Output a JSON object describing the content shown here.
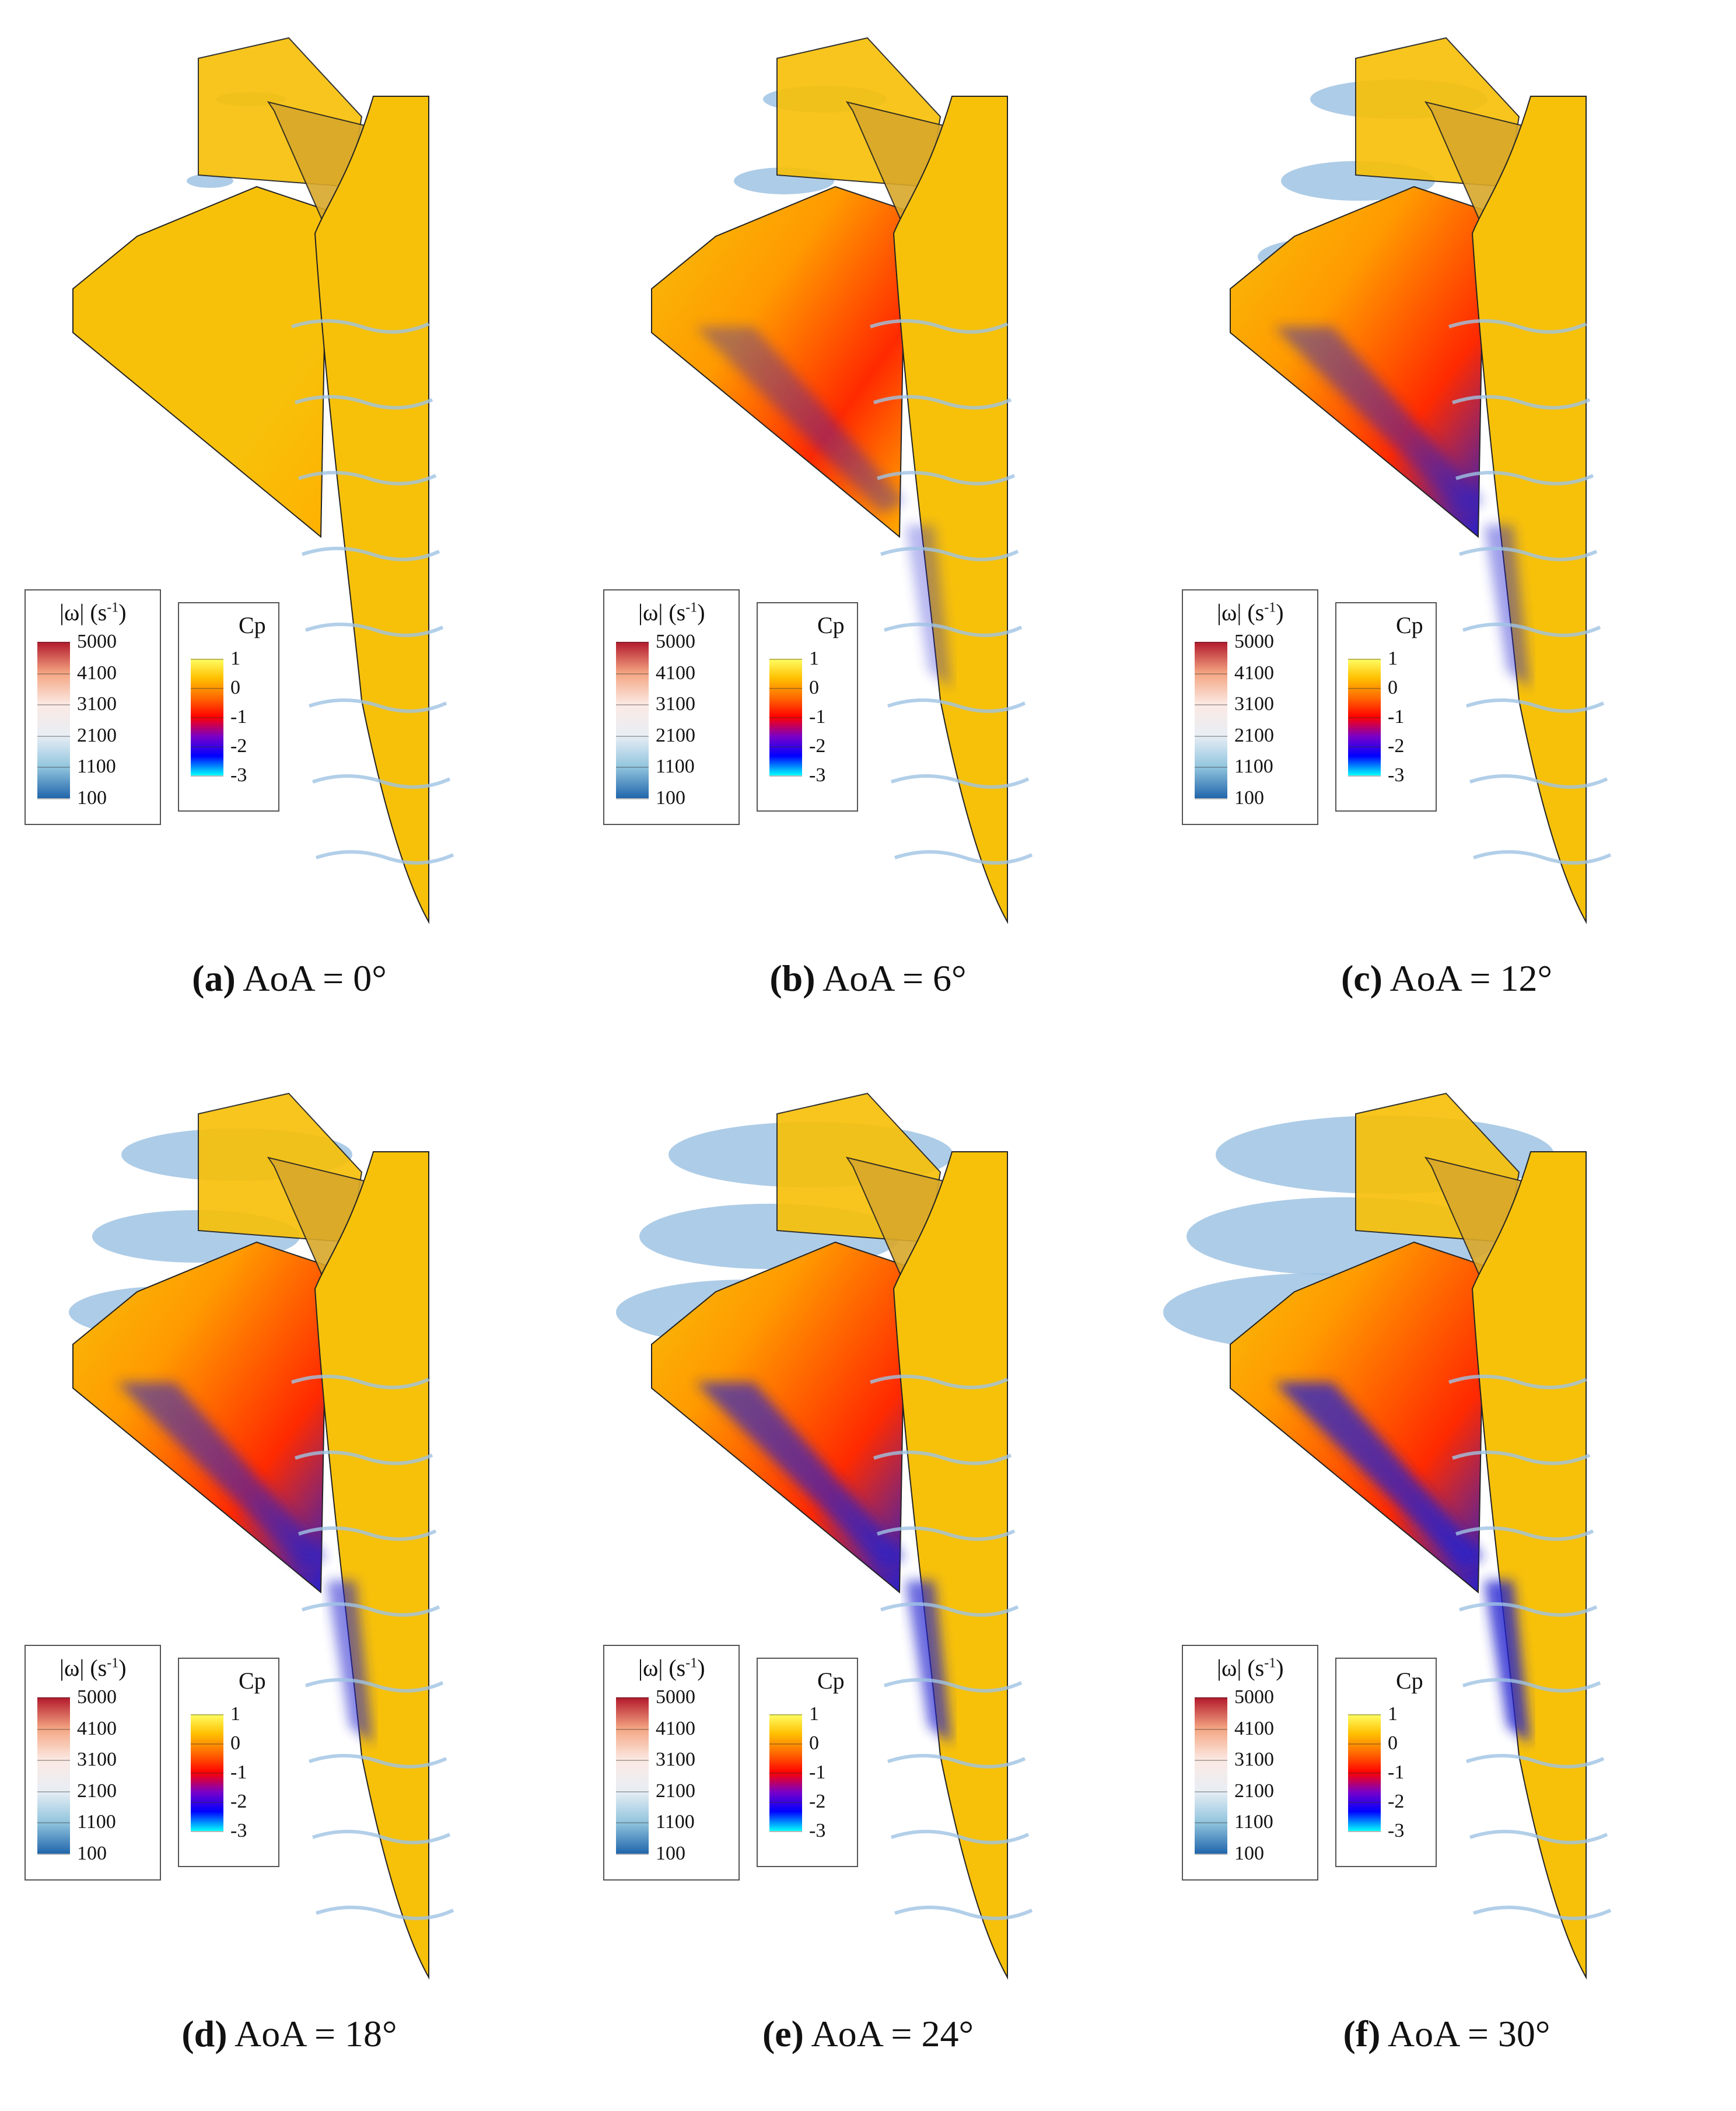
{
  "figure": {
    "panels": [
      {
        "letter": "(a)",
        "text": "AoA = 0°",
        "aoa": 0
      },
      {
        "letter": "(b)",
        "text": "AoA = 6°",
        "aoa": 6
      },
      {
        "letter": "(c)",
        "text": "AoA = 12°",
        "aoa": 12
      },
      {
        "letter": "(d)",
        "text": "AoA = 18°",
        "aoa": 18
      },
      {
        "letter": "(e)",
        "text": "AoA = 24°",
        "aoa": 24
      },
      {
        "letter": "(f)",
        "text": "AoA = 30°",
        "aoa": 30
      }
    ],
    "vorticity_legend": {
      "title": "|ω| (s",
      "title_sup": "-1",
      "title_end": ")",
      "ticks": [
        "5000",
        "4100",
        "3100",
        "2100",
        "1100",
        "100"
      ],
      "colors": [
        "#b2182b",
        "#f4a582",
        "#fbe9e3",
        "#e8eef5",
        "#92c5de",
        "#2166ac"
      ]
    },
    "cp_legend": {
      "title": "Cp",
      "ticks": [
        "1",
        "0",
        "-1",
        "-2",
        "-3"
      ],
      "colors": [
        "#ffff66",
        "#ffc000",
        "#ff6a00",
        "#ff0000",
        "#7a00c8",
        "#0000ff",
        "#00ffff"
      ]
    },
    "surface_colors": {
      "base": "#f7c10a",
      "suction": "#ff2a00",
      "strong_suction": "#2020d0",
      "vortex_isosurface": "#9fc3e3"
    }
  }
}
